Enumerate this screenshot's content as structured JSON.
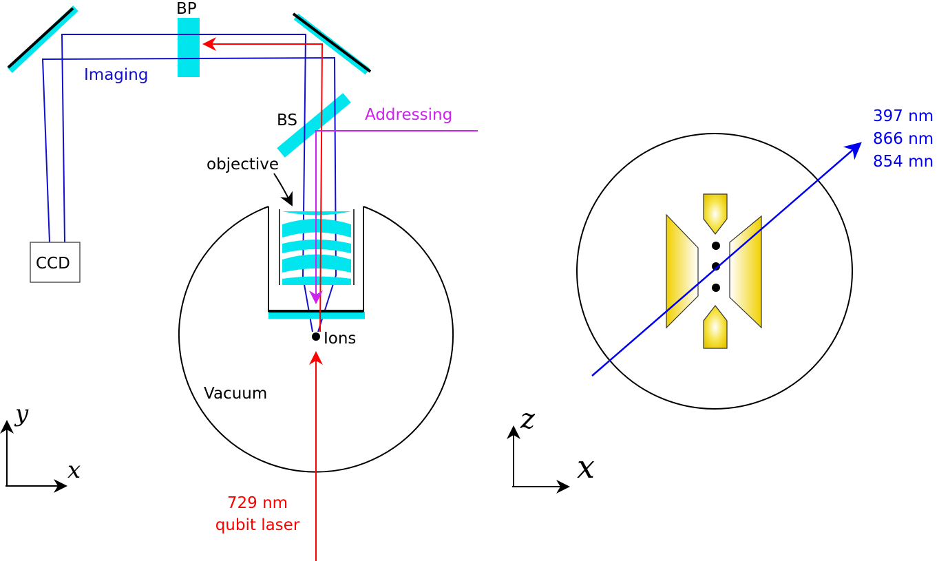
{
  "labels": {
    "bp": "BP",
    "imaging": "Imaging",
    "bs": "BS",
    "addressing": "Addressing",
    "objective": "objective",
    "ccd": "CCD",
    "ions": "Ions",
    "vacuum": "Vacuum",
    "qubit_laser_line1": "729 nm",
    "qubit_laser_line2": "qubit laser",
    "beam_line1": "397 nm",
    "beam_line2": "866 nm",
    "beam_line3": "854 mn"
  },
  "axes": {
    "left_y": "y",
    "left_x": "x",
    "right_z": "z",
    "right_x": "x"
  },
  "colors": {
    "optic": "#00e5ee",
    "imaging_beam": "#1010cc",
    "qubit_beam": "#ff0000",
    "addressing_beam": "#cc22ee",
    "cooling_beam": "#0000ee",
    "electrode": "#f0d000",
    "outline": "#000000"
  }
}
